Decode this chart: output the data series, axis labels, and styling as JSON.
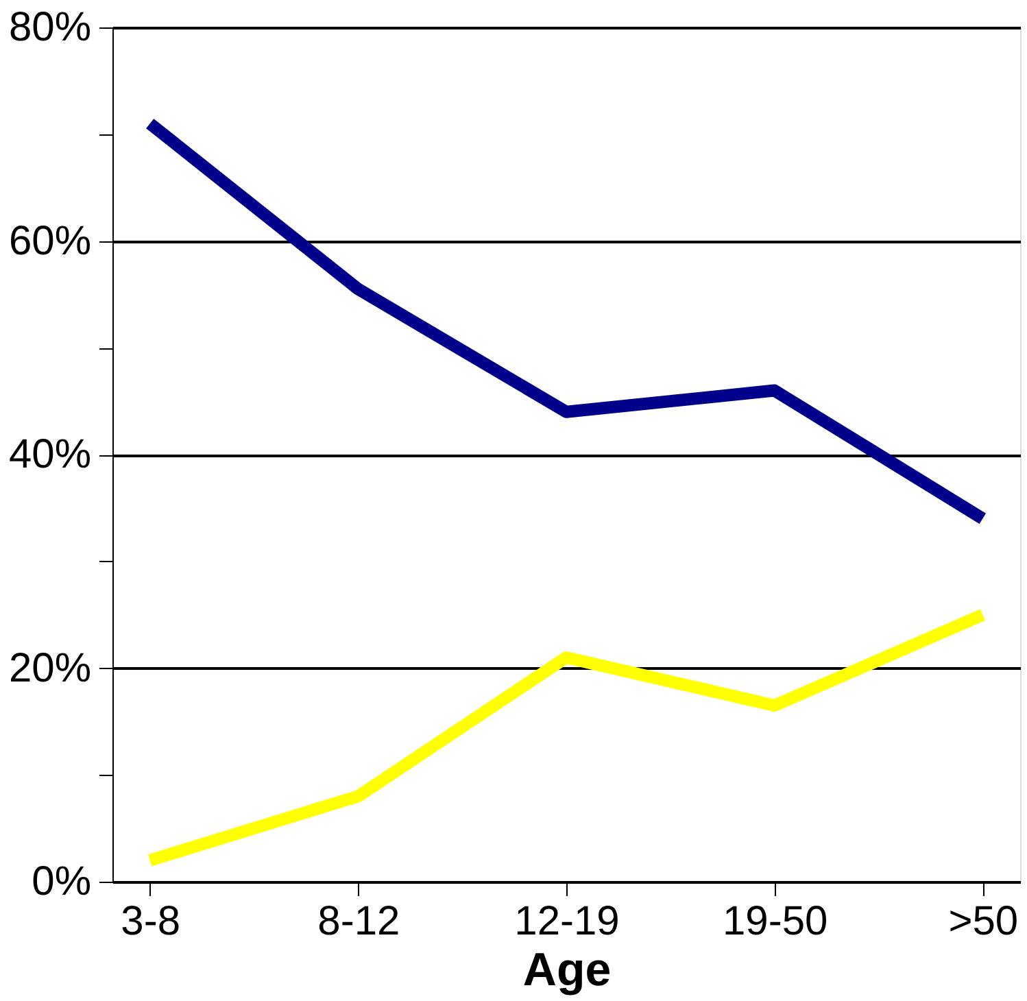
{
  "chart_data": {
    "type": "line",
    "xlabel": "Age",
    "categories": [
      "3-8",
      "8-12",
      "12-19",
      "19-50",
      ">50"
    ],
    "series": [
      {
        "color": "#00008b",
        "values": [
          71,
          55.5,
          44,
          46,
          34
        ]
      },
      {
        "color": "#ffff00",
        "values": [
          2,
          8,
          21,
          16.5,
          25
        ]
      }
    ],
    "ylim": [
      0,
      80
    ],
    "yticks": [
      {
        "value": 0,
        "label": "0%"
      },
      {
        "value": 10,
        "label": null
      },
      {
        "value": 20,
        "label": "20%"
      },
      {
        "value": 30,
        "label": null
      },
      {
        "value": 40,
        "label": "40%"
      },
      {
        "value": 50,
        "label": null
      },
      {
        "value": 60,
        "label": "60%"
      },
      {
        "value": 70,
        "label": null
      },
      {
        "value": 80,
        "label": "80%"
      }
    ],
    "grid": "y",
    "legend": false,
    "marker": "none",
    "line_style": "solid"
  }
}
